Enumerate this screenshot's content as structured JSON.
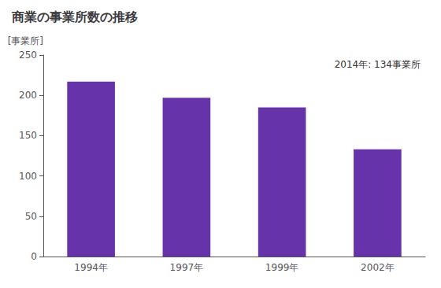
{
  "chart_data": {
    "type": "bar",
    "title": "商業の事業所数の推移",
    "ylabel": "[事業所]",
    "annotation": "2014年: 134事業所",
    "categories": [
      "1994年",
      "1997年",
      "1999年",
      "2002年"
    ],
    "values": [
      217,
      197,
      185,
      133
    ],
    "color": "#6633aa",
    "ylim": [
      0,
      250
    ],
    "yticks": [
      0,
      50,
      100,
      150,
      200,
      250
    ],
    "grid": false
  }
}
